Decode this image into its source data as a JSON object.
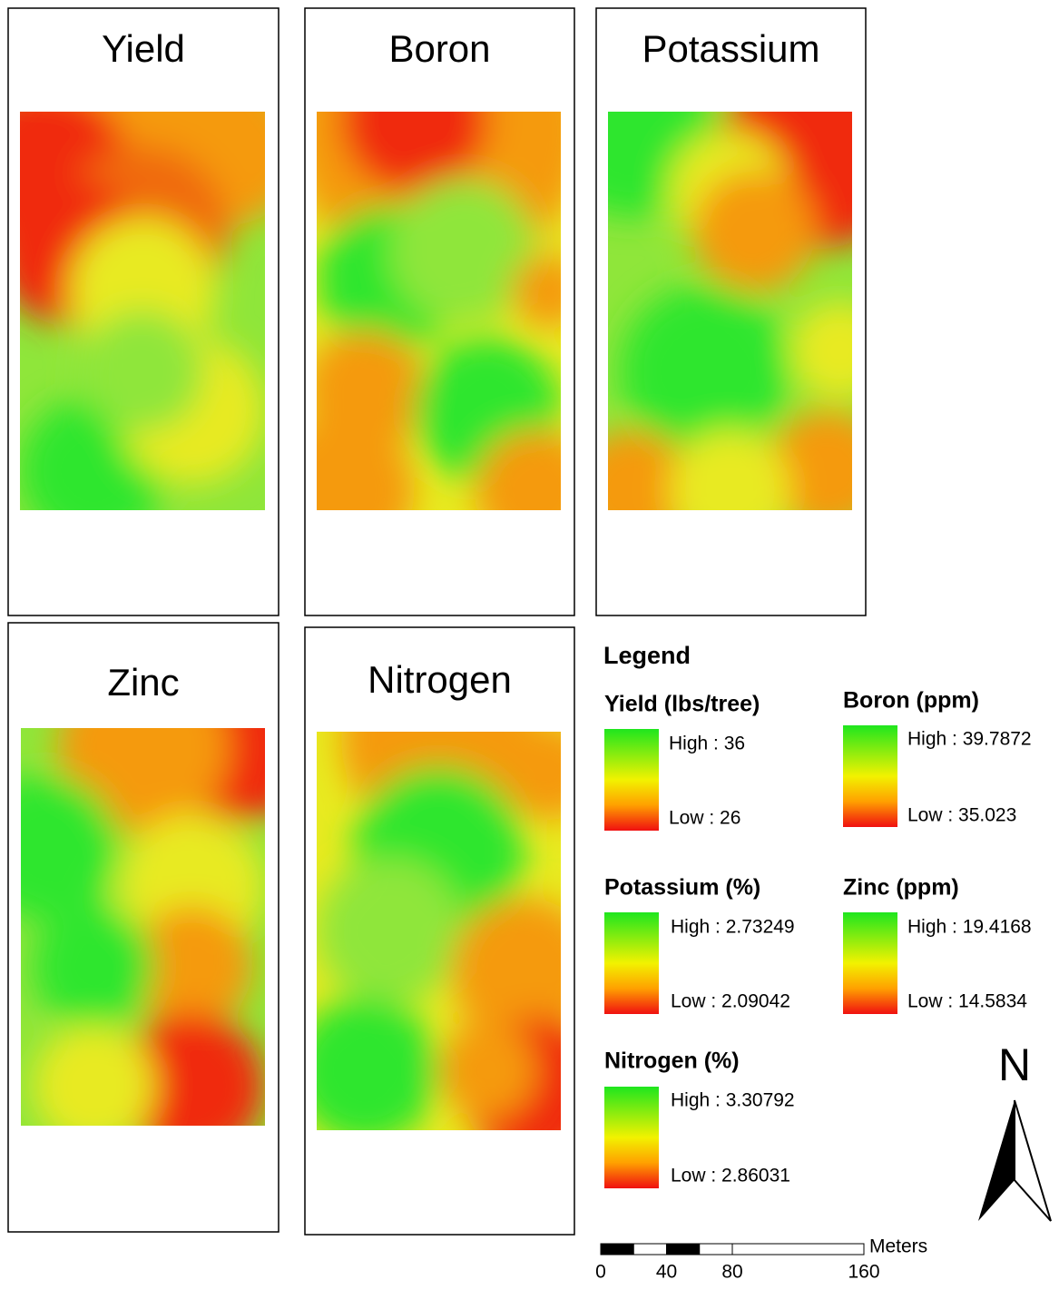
{
  "panels": [
    {
      "title": "Yield"
    },
    {
      "title": "Boron"
    },
    {
      "title": "Potassium"
    },
    {
      "title": "Zinc"
    },
    {
      "title": "Nitrogen"
    }
  ],
  "legend": {
    "title": "Legend",
    "items": [
      {
        "title": "Yield (lbs/tree)",
        "high": "High : 36",
        "low": "Low : 26"
      },
      {
        "title": "Boron (ppm)",
        "high": "High : 39.7872",
        "low": "Low : 35.023"
      },
      {
        "title": "Potassium (%)",
        "high": "High : 2.73249",
        "low": "Low : 2.09042"
      },
      {
        "title": "Zinc (ppm)",
        "high": "High : 19.4168",
        "low": "Low : 14.5834"
      },
      {
        "title": "Nitrogen (%)",
        "high": "High : 3.30792",
        "low": "Low : 2.86031"
      }
    ]
  },
  "north": "N",
  "scale_bar": {
    "unit": "Meters",
    "ticks": [
      0,
      40,
      80,
      160
    ]
  }
}
